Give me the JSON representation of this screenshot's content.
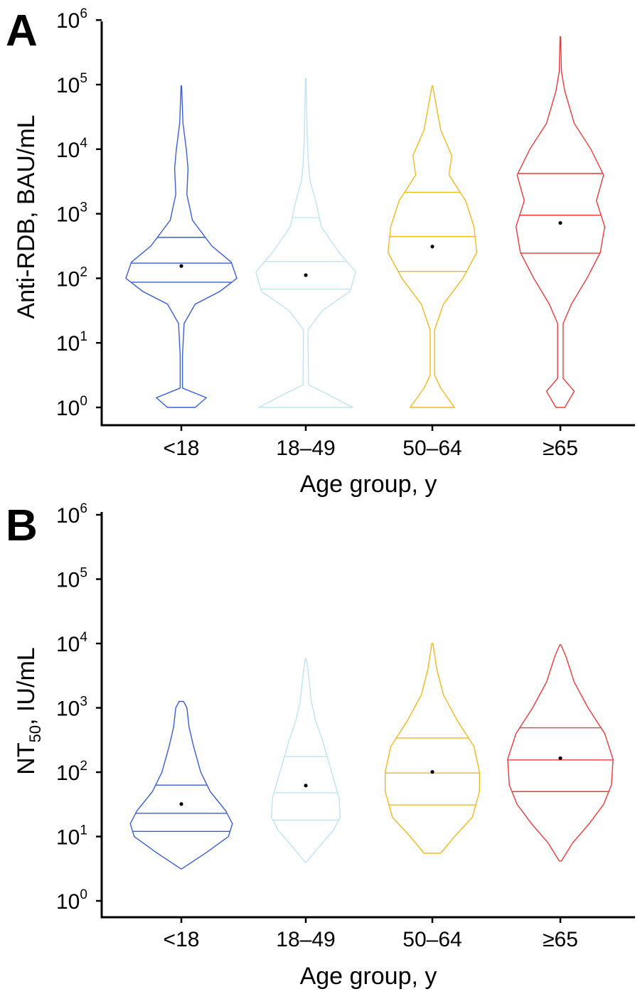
{
  "chart_data": [
    {
      "type": "violin",
      "panel_label": "A",
      "xlabel": "Age group, y",
      "ylabel": "Anti-RDB, BAU/mL",
      "yscale": "log",
      "ylim": [
        1,
        1000000
      ],
      "y_ticks": [
        {
          "base": "10",
          "exp": "0"
        },
        {
          "base": "10",
          "exp": "1"
        },
        {
          "base": "10",
          "exp": "2"
        },
        {
          "base": "10",
          "exp": "3"
        },
        {
          "base": "10",
          "exp": "4"
        },
        {
          "base": "10",
          "exp": "5"
        },
        {
          "base": "10",
          "exp": "6"
        }
      ],
      "categories": [
        "<18",
        "18–49",
        "50–64",
        "≥65"
      ],
      "series": [
        {
          "category": "<18",
          "color": "#3a5ed9",
          "min": 1,
          "max": 95000,
          "q1": 87,
          "median": 172,
          "q3": 430,
          "mean": 155,
          "density": [
            [
              0,
              0.25
            ],
            [
              0.15,
              0.45
            ],
            [
              0.3,
              0.02
            ],
            [
              0.8,
              0.02
            ],
            [
              1.3,
              0.05
            ],
            [
              1.6,
              0.25
            ],
            [
              1.8,
              0.7
            ],
            [
              2.0,
              1.0
            ],
            [
              2.25,
              0.9
            ],
            [
              2.5,
              0.55
            ],
            [
              2.9,
              0.2
            ],
            [
              3.3,
              0.1
            ],
            [
              3.7,
              0.12
            ],
            [
              4.0,
              0.09
            ],
            [
              4.4,
              0.03
            ],
            [
              4.98,
              0.005
            ]
          ]
        },
        {
          "category": "18–49",
          "color": "#bfe3f5",
          "min": 1,
          "max": 125000,
          "q1": 68,
          "median": 182,
          "q3": 870,
          "mean": 112,
          "density": [
            [
              0,
              0.85
            ],
            [
              0.2,
              0.4
            ],
            [
              0.35,
              0.05
            ],
            [
              1.2,
              0.04
            ],
            [
              1.5,
              0.3
            ],
            [
              1.8,
              0.8
            ],
            [
              2.1,
              0.9
            ],
            [
              2.4,
              0.6
            ],
            [
              2.8,
              0.28
            ],
            [
              3.2,
              0.18
            ],
            [
              3.5,
              0.08
            ],
            [
              3.75,
              0.05
            ],
            [
              4.1,
              0.03
            ],
            [
              5.1,
              0.005
            ]
          ]
        },
        {
          "category": "50–64",
          "color": "#f2b81d",
          "min": 1,
          "max": 95000,
          "q1": 128,
          "median": 445,
          "q3": 2150,
          "mean": 310,
          "density": [
            [
              0,
              0.4
            ],
            [
              0.3,
              0.15
            ],
            [
              0.5,
              0.04
            ],
            [
              1.2,
              0.04
            ],
            [
              1.6,
              0.2
            ],
            [
              2.0,
              0.55
            ],
            [
              2.4,
              0.8
            ],
            [
              2.8,
              0.75
            ],
            [
              3.2,
              0.6
            ],
            [
              3.6,
              0.3
            ],
            [
              3.9,
              0.35
            ],
            [
              4.3,
              0.15
            ],
            [
              4.98,
              0.005
            ]
          ]
        },
        {
          "category": "≥65",
          "color": "#ee3a3a",
          "min": 1,
          "max": 550000,
          "q1": 245,
          "median": 950,
          "q3": 4200,
          "mean": 720,
          "density": [
            [
              0,
              0.08
            ],
            [
              0.25,
              0.25
            ],
            [
              0.45,
              0.05
            ],
            [
              1.3,
              0.05
            ],
            [
              1.6,
              0.2
            ],
            [
              2.0,
              0.48
            ],
            [
              2.4,
              0.72
            ],
            [
              2.8,
              0.8
            ],
            [
              3.2,
              0.65
            ],
            [
              3.6,
              0.78
            ],
            [
              4.0,
              0.55
            ],
            [
              4.4,
              0.25
            ],
            [
              4.9,
              0.08
            ],
            [
              5.2,
              0.02
            ],
            [
              5.74,
              0.005
            ]
          ]
        }
      ]
    },
    {
      "type": "violin",
      "panel_label": "B",
      "xlabel": "Age group, y",
      "ylabel_main": "NT",
      "ylabel_sub": "50",
      "ylabel_tail": ", IU/mL",
      "yscale": "log",
      "ylim": [
        1,
        1000000
      ],
      "y_ticks": [
        {
          "base": "10",
          "exp": "0"
        },
        {
          "base": "10",
          "exp": "1"
        },
        {
          "base": "10",
          "exp": "2"
        },
        {
          "base": "10",
          "exp": "3"
        },
        {
          "base": "10",
          "exp": "4"
        },
        {
          "base": "10",
          "exp": "5"
        },
        {
          "base": "10",
          "exp": "6"
        }
      ],
      "categories": [
        "<18",
        "18–49",
        "50–64",
        "≥65"
      ],
      "series": [
        {
          "category": "<18",
          "color": "#3a5ed9",
          "min": 3.2,
          "max": 1250,
          "q1": 12,
          "median": 23,
          "q3": 63,
          "mean": 32,
          "density": [
            [
              0.5,
              0.01
            ],
            [
              0.75,
              0.45
            ],
            [
              1.0,
              0.85
            ],
            [
              1.2,
              0.92
            ],
            [
              1.4,
              0.8
            ],
            [
              1.7,
              0.52
            ],
            [
              2.0,
              0.35
            ],
            [
              2.4,
              0.22
            ],
            [
              2.7,
              0.14
            ],
            [
              3.0,
              0.1
            ],
            [
              3.1,
              0.04
            ]
          ]
        },
        {
          "category": "18–49",
          "color": "#bfe3f5",
          "min": 4,
          "max": 5800,
          "q1": 18,
          "median": 48,
          "q3": 175,
          "mean": 62,
          "density": [
            [
              0.6,
              0.01
            ],
            [
              0.8,
              0.2
            ],
            [
              1.1,
              0.5
            ],
            [
              1.3,
              0.62
            ],
            [
              1.6,
              0.6
            ],
            [
              1.9,
              0.5
            ],
            [
              2.2,
              0.4
            ],
            [
              2.5,
              0.3
            ],
            [
              2.8,
              0.18
            ],
            [
              3.1,
              0.1
            ],
            [
              3.5,
              0.05
            ],
            [
              3.76,
              0.01
            ]
          ]
        },
        {
          "category": "50–64",
          "color": "#f2b81d",
          "min": 5.5,
          "max": 10000,
          "q1": 31,
          "median": 97,
          "q3": 340,
          "mean": 101,
          "density": [
            [
              0.74,
              0.15
            ],
            [
              1.0,
              0.4
            ],
            [
              1.3,
              0.72
            ],
            [
              1.7,
              0.85
            ],
            [
              2.0,
              0.85
            ],
            [
              2.4,
              0.75
            ],
            [
              2.8,
              0.45
            ],
            [
              3.2,
              0.2
            ],
            [
              3.6,
              0.08
            ],
            [
              4.0,
              0.01
            ]
          ]
        },
        {
          "category": "≥65",
          "color": "#ee3a3a",
          "min": 4.2,
          "max": 9500,
          "q1": 50,
          "median": 155,
          "q3": 490,
          "mean": 165,
          "density": [
            [
              0.62,
              0.02
            ],
            [
              0.9,
              0.22
            ],
            [
              1.2,
              0.52
            ],
            [
              1.5,
              0.78
            ],
            [
              1.8,
              0.92
            ],
            [
              2.2,
              0.95
            ],
            [
              2.6,
              0.8
            ],
            [
              3.0,
              0.5
            ],
            [
              3.4,
              0.25
            ],
            [
              3.8,
              0.1
            ],
            [
              3.98,
              0.01
            ]
          ]
        }
      ]
    }
  ]
}
